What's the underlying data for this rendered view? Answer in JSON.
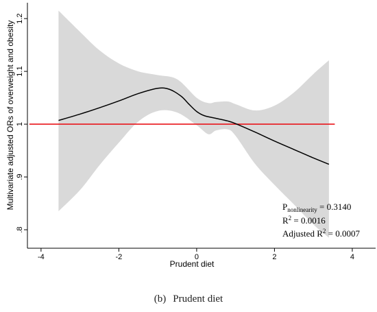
{
  "chart_data": {
    "type": "line",
    "xlabel": "Prudent diet",
    "ylabel": "Multivariate adjusted ORs of overweight and obesity",
    "xlim": [
      -4.35,
      4.6
    ],
    "ylim": [
      0.765,
      1.23
    ],
    "x_ticks": [
      -4,
      -2,
      0,
      2,
      4
    ],
    "y_ticks": [
      0.8,
      0.9,
      1,
      1.1,
      1.2
    ],
    "x_tick_labels": [
      "-4",
      "-2",
      "0",
      "2",
      "4"
    ],
    "y_tick_labels": [
      ".8",
      ".9",
      "1",
      "1.1",
      "1.2"
    ],
    "grid": false,
    "reference_line": {
      "y": 1.0,
      "x_range": [
        -4.3,
        3.55
      ],
      "color": "#e8141a"
    },
    "curve": {
      "x": [
        -3.55,
        -3.0,
        -2.5,
        -2.0,
        -1.5,
        -1.0,
        -0.7,
        -0.4,
        -0.2,
        0.0,
        0.2,
        0.5,
        0.8,
        1.0,
        1.5,
        2.0,
        2.5,
        3.0,
        3.4
      ],
      "y": [
        1.007,
        1.019,
        1.031,
        1.044,
        1.058,
        1.068,
        1.066,
        1.053,
        1.038,
        1.024,
        1.016,
        1.011,
        1.006,
        1.001,
        0.985,
        0.968,
        0.952,
        0.936,
        0.924
      ],
      "color": "#000000"
    },
    "ci_band": {
      "x": [
        -3.55,
        -3.0,
        -2.5,
        -2.0,
        -1.5,
        -1.0,
        -0.5,
        0.0,
        0.3,
        0.5,
        0.8,
        1.0,
        1.5,
        2.0,
        2.5,
        3.0,
        3.4
      ],
      "upper": [
        1.215,
        1.175,
        1.14,
        1.115,
        1.1,
        1.093,
        1.085,
        1.05,
        1.04,
        1.042,
        1.043,
        1.038,
        1.026,
        1.035,
        1.06,
        1.095,
        1.121
      ],
      "lower": [
        0.835,
        0.875,
        0.922,
        0.965,
        1.005,
        1.025,
        1.022,
        0.998,
        0.981,
        0.988,
        0.99,
        0.978,
        0.925,
        0.885,
        0.848,
        0.81,
        0.785
      ],
      "color": "#d9d9d9"
    },
    "annotations": [
      {
        "main": "P",
        "sub": "nonlinearity",
        "rest": " = 0.3140"
      },
      {
        "main": "R",
        "sup": "2",
        "rest": " = 0.0016"
      },
      {
        "main": "Adjusted R",
        "sup": "2",
        "rest": " = 0.0007"
      }
    ]
  },
  "caption": {
    "tag": "(b)",
    "text": "Prudent diet"
  }
}
